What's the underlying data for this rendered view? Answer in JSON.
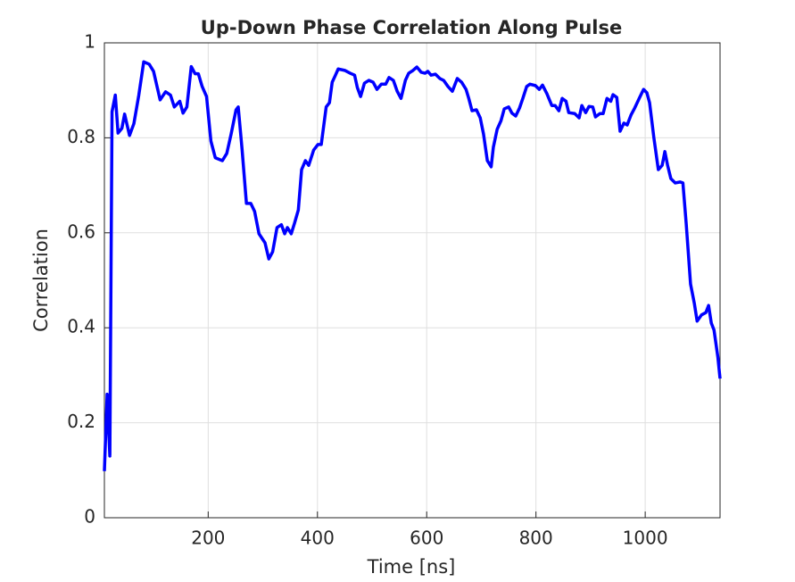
{
  "chart_data": {
    "type": "line",
    "title": "Up-Down Phase Correlation Along Pulse",
    "x_label": "Time [ns]",
    "y_label": "Correlation",
    "xlim": [
      10,
      1137
    ],
    "ylim": [
      0,
      1
    ],
    "xticks": [
      200,
      400,
      600,
      800,
      1000
    ],
    "yticks": [
      0,
      0.2,
      0.4,
      0.6,
      0.8,
      1
    ],
    "grid": true,
    "series": [
      {
        "color": "#0000ff",
        "x": [
          10,
          15,
          20,
          24,
          30,
          35,
          42,
          47,
          56,
          64,
          73,
          82,
          92,
          100,
          112,
          122,
          131,
          138,
          148,
          154,
          161,
          169,
          176,
          182,
          189,
          197,
          205,
          213,
          226,
          234,
          242,
          251,
          255,
          262,
          270,
          278,
          285,
          293,
          304,
          311,
          318,
          326,
          334,
          340,
          345,
          352,
          358,
          365,
          371,
          378,
          384,
          393,
          401,
          407,
          416,
          422,
          427,
          433,
          438,
          450,
          460,
          468,
          473,
          479,
          486,
          494,
          502,
          509,
          517,
          525,
          531,
          539,
          546,
          553,
          561,
          567,
          575,
          582,
          590,
          597,
          602,
          608,
          616,
          624,
          631,
          639,
          647,
          656,
          664,
          672,
          677,
          683,
          691,
          698,
          704,
          711,
          718,
          722,
          729,
          736,
          742,
          750,
          756,
          763,
          770,
          776,
          783,
          789,
          799,
          806,
          812,
          820,
          829,
          835,
          842,
          848,
          855,
          860,
          871,
          879,
          884,
          891,
          897,
          904,
          909,
          917,
          923,
          930,
          937,
          941,
          948,
          954,
          961,
          967,
          974,
          980,
          989,
          997,
          1003,
          1008,
          1016,
          1024,
          1031,
          1036,
          1041,
          1047,
          1055,
          1064,
          1069,
          1075,
          1083,
          1090,
          1095,
          1103,
          1111,
          1116,
          1121,
          1126,
          1133,
          1137
        ],
        "values": [
          0.098,
          0.26,
          0.13,
          0.855,
          0.89,
          0.81,
          0.82,
          0.85,
          0.805,
          0.83,
          0.89,
          0.96,
          0.955,
          0.94,
          0.88,
          0.897,
          0.89,
          0.865,
          0.877,
          0.852,
          0.865,
          0.95,
          0.935,
          0.935,
          0.908,
          0.887,
          0.793,
          0.758,
          0.752,
          0.767,
          0.808,
          0.859,
          0.865,
          0.776,
          0.662,
          0.662,
          0.645,
          0.598,
          0.579,
          0.545,
          0.56,
          0.611,
          0.617,
          0.598,
          0.611,
          0.598,
          0.62,
          0.648,
          0.733,
          0.752,
          0.742,
          0.774,
          0.786,
          0.786,
          0.865,
          0.874,
          0.917,
          0.932,
          0.945,
          0.942,
          0.936,
          0.932,
          0.906,
          0.887,
          0.915,
          0.921,
          0.917,
          0.902,
          0.913,
          0.913,
          0.927,
          0.921,
          0.898,
          0.883,
          0.921,
          0.936,
          0.942,
          0.949,
          0.938,
          0.936,
          0.94,
          0.932,
          0.934,
          0.925,
          0.921,
          0.908,
          0.898,
          0.925,
          0.917,
          0.902,
          0.883,
          0.857,
          0.859,
          0.842,
          0.808,
          0.752,
          0.739,
          0.78,
          0.818,
          0.836,
          0.861,
          0.865,
          0.852,
          0.846,
          0.863,
          0.883,
          0.908,
          0.913,
          0.91,
          0.902,
          0.911,
          0.893,
          0.868,
          0.868,
          0.857,
          0.883,
          0.877,
          0.853,
          0.851,
          0.842,
          0.868,
          0.853,
          0.866,
          0.865,
          0.844,
          0.851,
          0.851,
          0.883,
          0.877,
          0.891,
          0.885,
          0.814,
          0.831,
          0.827,
          0.848,
          0.861,
          0.883,
          0.902,
          0.895,
          0.874,
          0.799,
          0.733,
          0.742,
          0.771,
          0.742,
          0.714,
          0.705,
          0.707,
          0.705,
          0.62,
          0.492,
          0.451,
          0.414,
          0.427,
          0.432,
          0.447,
          0.41,
          0.395,
          0.338,
          0.293
        ]
      }
    ]
  }
}
